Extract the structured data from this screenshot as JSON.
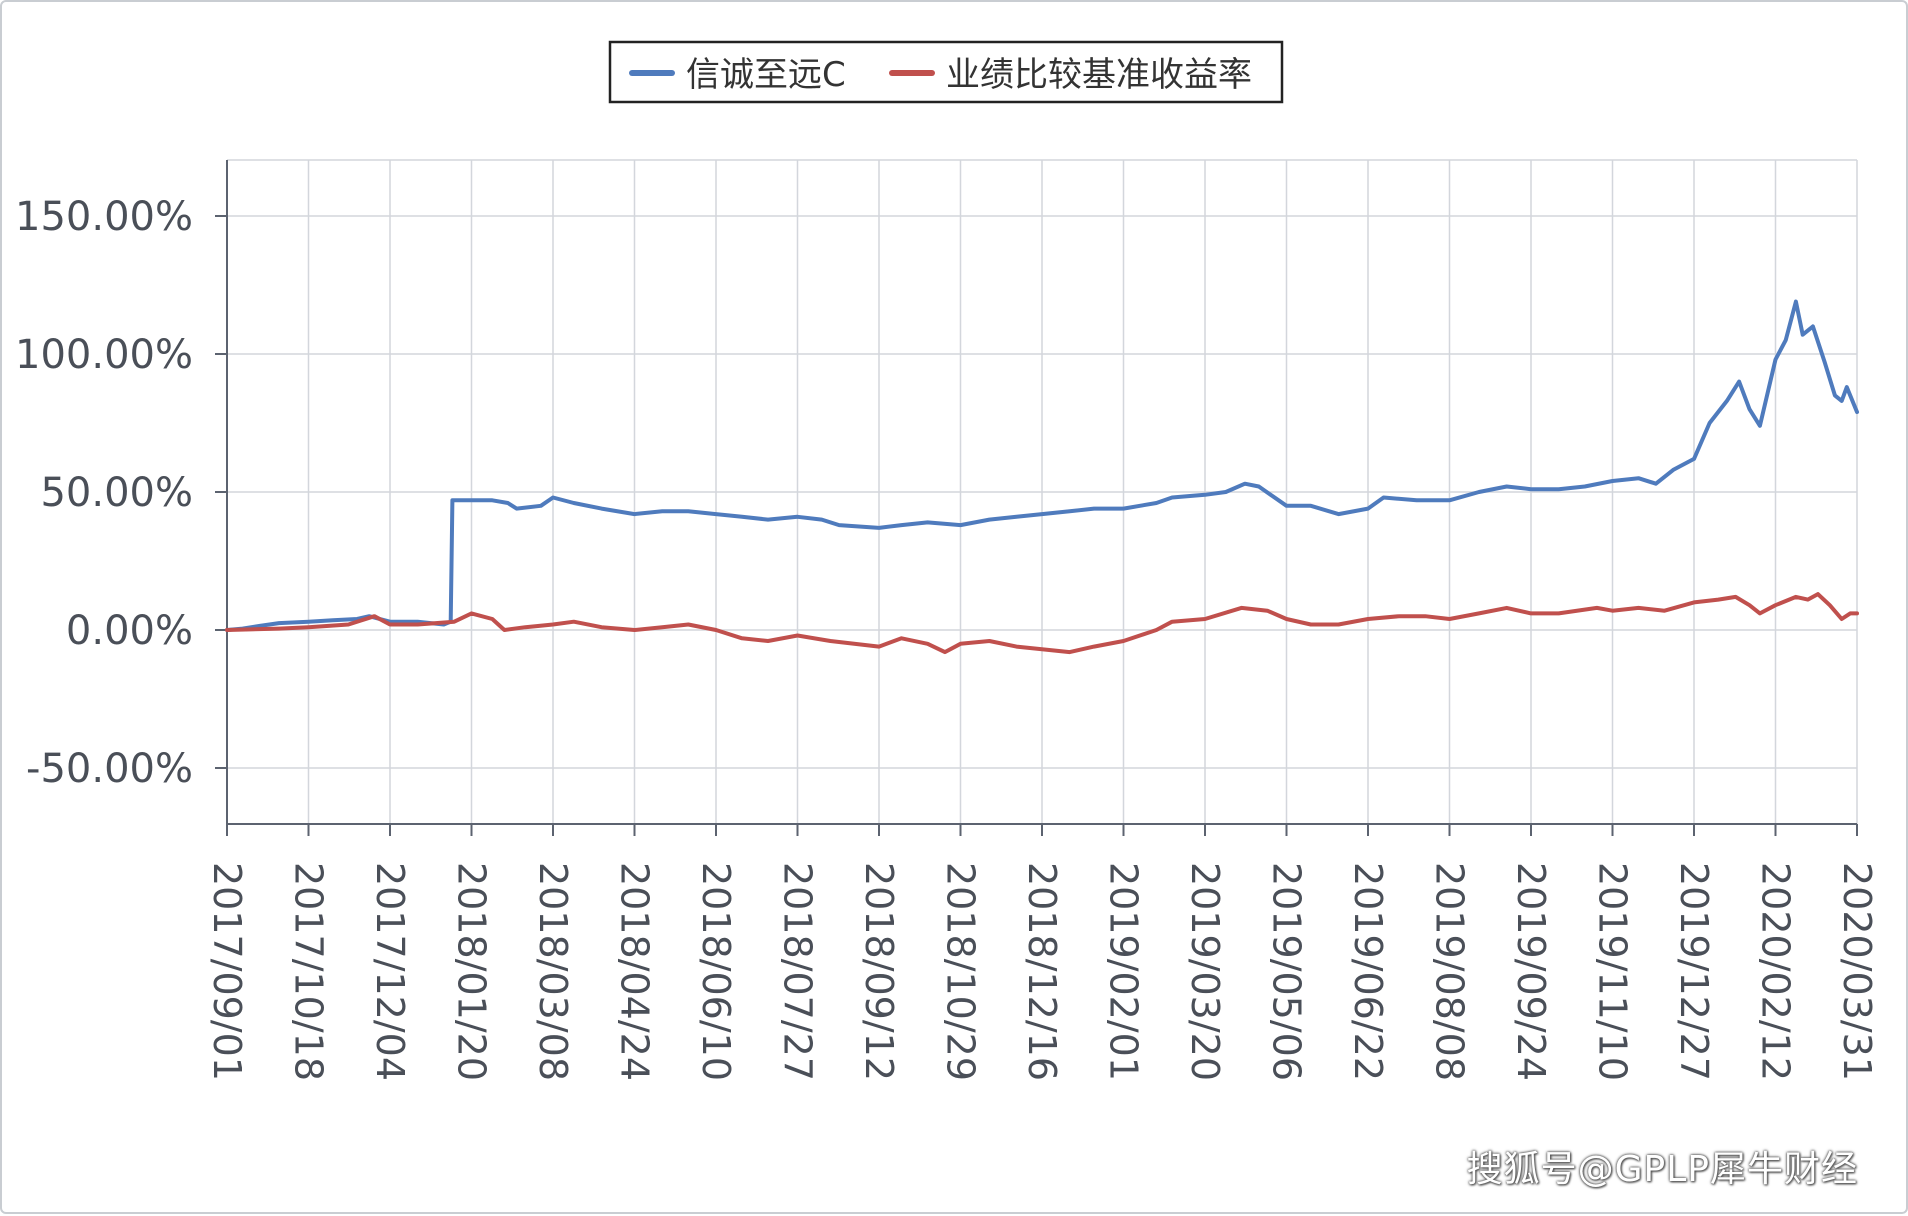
{
  "chart_data": {
    "type": "line",
    "title": "",
    "xlabel": "",
    "ylabel": "",
    "ylim": [
      -70,
      170
    ],
    "yticks": [
      -50,
      0,
      50,
      100,
      150
    ],
    "ytick_labels": [
      "-50.00%",
      "0.00%",
      "50.00%",
      "100.00%",
      "150.00%"
    ],
    "x_tick_labels": [
      "2017/09/01",
      "2017/10/18",
      "2017/12/04",
      "2018/01/20",
      "2018/03/08",
      "2018/04/24",
      "2018/06/10",
      "2018/07/27",
      "2018/09/12",
      "2018/10/29",
      "2018/12/16",
      "2019/02/01",
      "2019/03/20",
      "2019/05/06",
      "2019/06/22",
      "2019/08/08",
      "2019/09/24",
      "2019/11/10",
      "2019/12/27",
      "2020/02/12",
      "2020/03/31"
    ],
    "grid": true,
    "legend_position": "top-center",
    "series": [
      {
        "name": "信诚至远C",
        "color": "#4f7bbd",
        "points": [
          [
            "2017/09/01",
            0
          ],
          [
            "2017/09/10",
            0.5
          ],
          [
            "2017/09/20",
            1.5
          ],
          [
            "2017/10/01",
            2.5
          ],
          [
            "2017/10/18",
            3
          ],
          [
            "2017/11/01",
            3.5
          ],
          [
            "2017/11/15",
            4
          ],
          [
            "2017/11/22",
            5
          ],
          [
            "2017/12/04",
            3
          ],
          [
            "2017/12/20",
            3
          ],
          [
            "2018/01/04",
            2
          ],
          [
            "2018/01/08",
            3
          ],
          [
            "2018/01/09",
            47
          ],
          [
            "2018/01/20",
            47
          ],
          [
            "2018/02/01",
            47
          ],
          [
            "2018/02/10",
            46
          ],
          [
            "2018/02/15",
            44
          ],
          [
            "2018/03/01",
            45
          ],
          [
            "2018/03/08",
            48
          ],
          [
            "2018/03/20",
            46
          ],
          [
            "2018/04/05",
            44
          ],
          [
            "2018/04/24",
            42
          ],
          [
            "2018/05/10",
            43
          ],
          [
            "2018/05/25",
            43
          ],
          [
            "2018/06/10",
            42
          ],
          [
            "2018/06/25",
            41
          ],
          [
            "2018/07/10",
            40
          ],
          [
            "2018/07/27",
            41
          ],
          [
            "2018/08/10",
            40
          ],
          [
            "2018/08/20",
            38
          ],
          [
            "2018/09/12",
            37
          ],
          [
            "2018/09/25",
            38
          ],
          [
            "2018/10/10",
            39
          ],
          [
            "2018/10/29",
            38
          ],
          [
            "2018/11/15",
            40
          ],
          [
            "2018/12/01",
            41
          ],
          [
            "2018/12/16",
            42
          ],
          [
            "2019/01/01",
            43
          ],
          [
            "2019/01/15",
            44
          ],
          [
            "2019/02/01",
            44
          ],
          [
            "2019/02/20",
            46
          ],
          [
            "2019/03/01",
            48
          ],
          [
            "2019/03/20",
            49
          ],
          [
            "2019/04/01",
            50
          ],
          [
            "2019/04/12",
            53
          ],
          [
            "2019/04/20",
            52
          ],
          [
            "2019/05/06",
            45
          ],
          [
            "2019/05/20",
            45
          ],
          [
            "2019/06/05",
            42
          ],
          [
            "2019/06/22",
            44
          ],
          [
            "2019/07/01",
            48
          ],
          [
            "2019/07/20",
            47
          ],
          [
            "2019/08/08",
            47
          ],
          [
            "2019/08/25",
            50
          ],
          [
            "2019/09/10",
            52
          ],
          [
            "2019/09/24",
            51
          ],
          [
            "2019/10/10",
            51
          ],
          [
            "2019/10/25",
            52
          ],
          [
            "2019/11/10",
            54
          ],
          [
            "2019/11/25",
            55
          ],
          [
            "2019/12/05",
            53
          ],
          [
            "2019/12/15",
            58
          ],
          [
            "2019/12/27",
            62
          ],
          [
            "2020/01/05",
            75
          ],
          [
            "2020/01/15",
            83
          ],
          [
            "2020/01/22",
            90
          ],
          [
            "2020/01/28",
            80
          ],
          [
            "2020/02/03",
            74
          ],
          [
            "2020/02/12",
            98
          ],
          [
            "2020/02/18",
            105
          ],
          [
            "2020/02/24",
            119
          ],
          [
            "2020/02/28",
            107
          ],
          [
            "2020/03/05",
            110
          ],
          [
            "2020/03/12",
            97
          ],
          [
            "2020/03/18",
            85
          ],
          [
            "2020/03/22",
            83
          ],
          [
            "2020/03/25",
            88
          ],
          [
            "2020/03/31",
            79
          ]
        ]
      },
      {
        "name": "业绩比较基准收益率",
        "color": "#c0504d",
        "points": [
          [
            "2017/09/01",
            0
          ],
          [
            "2017/10/01",
            0.5
          ],
          [
            "2017/10/18",
            1
          ],
          [
            "2017/11/10",
            2
          ],
          [
            "2017/11/25",
            5
          ],
          [
            "2017/12/04",
            2
          ],
          [
            "2017/12/20",
            2
          ],
          [
            "2018/01/10",
            3
          ],
          [
            "2018/01/20",
            6
          ],
          [
            "2018/02/01",
            4
          ],
          [
            "2018/02/08",
            0
          ],
          [
            "2018/02/20",
            1
          ],
          [
            "2018/03/08",
            2
          ],
          [
            "2018/03/20",
            3
          ],
          [
            "2018/04/05",
            1
          ],
          [
            "2018/04/24",
            0
          ],
          [
            "2018/05/10",
            1
          ],
          [
            "2018/05/25",
            2
          ],
          [
            "2018/06/10",
            0
          ],
          [
            "2018/06/25",
            -3
          ],
          [
            "2018/07/10",
            -4
          ],
          [
            "2018/07/27",
            -2
          ],
          [
            "2018/08/15",
            -4
          ],
          [
            "2018/09/12",
            -6
          ],
          [
            "2018/09/25",
            -3
          ],
          [
            "2018/10/10",
            -5
          ],
          [
            "2018/10/20",
            -8
          ],
          [
            "2018/10/29",
            -5
          ],
          [
            "2018/11/15",
            -4
          ],
          [
            "2018/12/01",
            -6
          ],
          [
            "2018/12/16",
            -7
          ],
          [
            "2019/01/01",
            -8
          ],
          [
            "2019/01/15",
            -6
          ],
          [
            "2019/02/01",
            -4
          ],
          [
            "2019/02/20",
            0
          ],
          [
            "2019/03/01",
            3
          ],
          [
            "2019/03/20",
            4
          ],
          [
            "2019/04/10",
            8
          ],
          [
            "2019/04/25",
            7
          ],
          [
            "2019/05/06",
            4
          ],
          [
            "2019/05/20",
            2
          ],
          [
            "2019/06/05",
            2
          ],
          [
            "2019/06/22",
            4
          ],
          [
            "2019/07/10",
            5
          ],
          [
            "2019/07/25",
            5
          ],
          [
            "2019/08/08",
            4
          ],
          [
            "2019/08/25",
            6
          ],
          [
            "2019/09/10",
            8
          ],
          [
            "2019/09/24",
            6
          ],
          [
            "2019/10/10",
            6
          ],
          [
            "2019/11/01",
            8
          ],
          [
            "2019/11/10",
            7
          ],
          [
            "2019/11/25",
            8
          ],
          [
            "2019/12/10",
            7
          ],
          [
            "2019/12/27",
            10
          ],
          [
            "2020/01/10",
            11
          ],
          [
            "2020/01/20",
            12
          ],
          [
            "2020/01/28",
            9
          ],
          [
            "2020/02/03",
            6
          ],
          [
            "2020/02/12",
            9
          ],
          [
            "2020/02/24",
            12
          ],
          [
            "2020/03/02",
            11
          ],
          [
            "2020/03/08",
            13
          ],
          [
            "2020/03/15",
            9
          ],
          [
            "2020/03/22",
            4
          ],
          [
            "2020/03/27",
            6
          ],
          [
            "2020/03/31",
            6
          ]
        ]
      }
    ]
  },
  "watermark": "搜狐号@GPLP犀牛财经"
}
